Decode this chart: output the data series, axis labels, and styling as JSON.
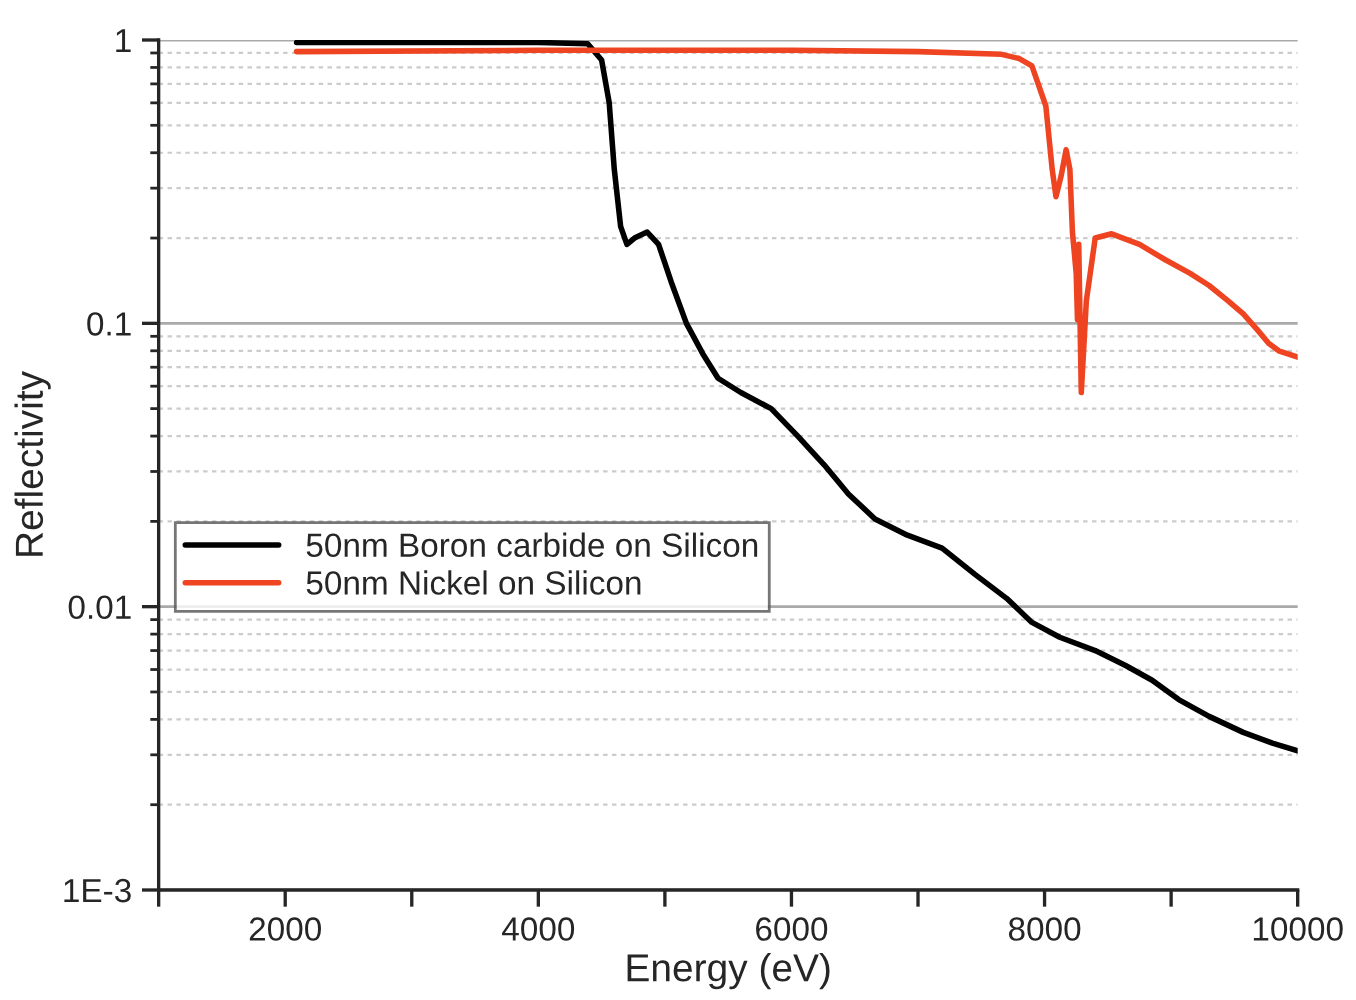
{
  "chart_data": {
    "type": "line",
    "xlabel": "Energy (eV)",
    "ylabel": "Reflectivity",
    "xlim": [
      1000,
      10000
    ],
    "xticks": [
      {
        "value": 1000,
        "label": null
      },
      2000,
      {
        "value": 3000,
        "label": null
      },
      4000,
      {
        "value": 5000,
        "label": null
      },
      6000,
      {
        "value": 7000,
        "label": null
      },
      8000,
      {
        "value": 9000,
        "label": null
      },
      10000
    ],
    "ylim": [
      0.001,
      1
    ],
    "yticks": [
      {
        "value": 0.001,
        "label": "1E-3"
      },
      0.01,
      0.1,
      1
    ],
    "log": "y",
    "grid": "y",
    "legend": "left",
    "line_style": "solid",
    "marker": "none",
    "series": [
      {
        "name": "50nm Boron carbide on Silicon",
        "color": "#000000",
        "x": [
          2090,
          3000,
          4000,
          4390,
          4500,
          4560,
          4600,
          4650,
          4700,
          4760,
          4860,
          4950,
          5050,
          5170,
          5300,
          5420,
          5600,
          5840,
          6050,
          6260,
          6450,
          6660,
          6900,
          7190,
          7450,
          7700,
          7900,
          8120,
          8400,
          8640,
          8850,
          9060,
          9300,
          9570,
          9800,
          10000
        ],
        "values": [
          0.98,
          0.98,
          0.98,
          0.97,
          0.85,
          0.6,
          0.35,
          0.22,
          0.19,
          0.2,
          0.21,
          0.19,
          0.14,
          0.1,
          0.078,
          0.064,
          0.057,
          0.05,
          0.04,
          0.0316,
          0.025,
          0.0204,
          0.018,
          0.0161,
          0.013,
          0.0107,
          0.0088,
          0.0078,
          0.007,
          0.0062,
          0.0055,
          0.0047,
          0.0041,
          0.0036,
          0.0033,
          0.0031
        ]
      },
      {
        "name": "50nm Nickel on Silicon",
        "color": "#ee4422",
        "x": [
          2090,
          4000,
          6000,
          7000,
          7660,
          7800,
          7900,
          8010,
          8060,
          8090,
          8130,
          8170,
          8200,
          8220,
          8250,
          8260,
          8270,
          8290,
          8330,
          8400,
          8530,
          8750,
          8950,
          9150,
          9300,
          9450,
          9570,
          9680,
          9770,
          9850,
          10000
        ],
        "values": [
          0.91,
          0.92,
          0.92,
          0.91,
          0.89,
          0.86,
          0.81,
          0.585,
          0.35,
          0.28,
          0.33,
          0.41,
          0.35,
          0.21,
          0.15,
          0.103,
          0.19,
          0.057,
          0.12,
          0.2,
          0.207,
          0.19,
          0.168,
          0.15,
          0.136,
          0.12,
          0.108,
          0.095,
          0.085,
          0.08,
          0.076
        ]
      }
    ]
  }
}
